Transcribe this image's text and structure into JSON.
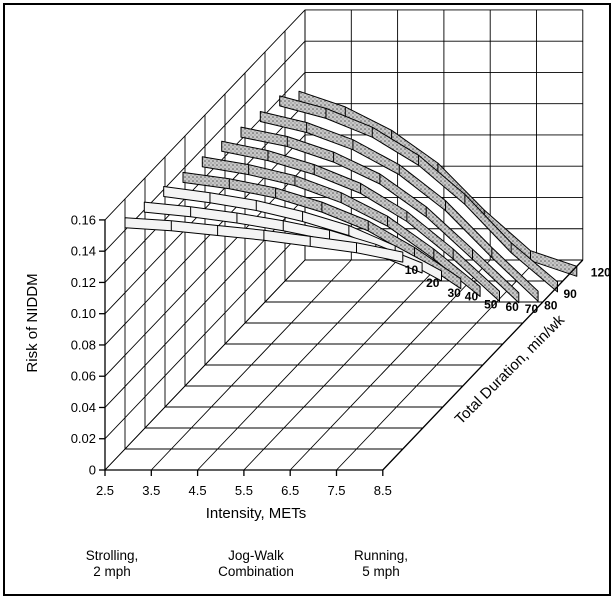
{
  "chart_data": {
    "type": "3d-ribbon",
    "ylabel": "Risk of NIDDM",
    "xlabel": "Intensity, METs",
    "zlabel": "Total Duration, min/wk",
    "x_ticks": [
      "2.5",
      "3.5",
      "4.5",
      "5.5",
      "6.5",
      "7.5",
      "8.5"
    ],
    "y_ticks": [
      "0",
      "0.02",
      "0.04",
      "0.06",
      "0.08",
      "0.10",
      "0.12",
      "0.14",
      "0.16"
    ],
    "ylim": [
      0,
      0.16
    ],
    "xlim": [
      2.5,
      8.5
    ],
    "x": [
      2.5,
      3.5,
      4.5,
      5.5,
      6.5,
      7.5,
      8.5
    ],
    "series": [
      {
        "name": "10",
        "values": [
          0.148,
          0.146,
          0.143,
          0.14,
          0.136,
          0.132,
          0.126
        ]
      },
      {
        "name": "20",
        "values": [
          0.145,
          0.142,
          0.138,
          0.133,
          0.127,
          0.118,
          0.106
        ]
      },
      {
        "name": "30",
        "values": [
          0.142,
          0.138,
          0.133,
          0.126,
          0.117,
          0.104,
          0.088
        ]
      },
      {
        "name": "40",
        "values": [
          0.138,
          0.134,
          0.128,
          0.119,
          0.107,
          0.09,
          0.07
        ]
      },
      {
        "name": "50",
        "values": [
          0.135,
          0.13,
          0.123,
          0.112,
          0.097,
          0.076,
          0.052
        ]
      },
      {
        "name": "60",
        "values": [
          0.132,
          0.126,
          0.117,
          0.105,
          0.087,
          0.063,
          0.036
        ]
      },
      {
        "name": "70",
        "values": [
          0.128,
          0.122,
          0.112,
          0.098,
          0.077,
          0.05,
          0.022
        ]
      },
      {
        "name": "80",
        "values": [
          0.125,
          0.118,
          0.107,
          0.091,
          0.068,
          0.038,
          0.01
        ]
      },
      {
        "name": "90",
        "values": [
          0.122,
          0.114,
          0.102,
          0.084,
          0.059,
          0.028,
          0.003
        ]
      },
      {
        "name": "120",
        "values": [
          0.112,
          0.102,
          0.087,
          0.066,
          0.036,
          0.01,
          0.0
        ]
      }
    ],
    "grid": true
  },
  "annotations": {
    "strolling": [
      "Strolling,",
      "2 mph"
    ],
    "jogwalk": [
      "Jog-Walk",
      "Combination"
    ],
    "running": [
      "Running,",
      "5 mph"
    ]
  },
  "colors": {
    "light_ribbon": "#f4f4f4",
    "dark_ribbon": "#9a9a9a"
  }
}
